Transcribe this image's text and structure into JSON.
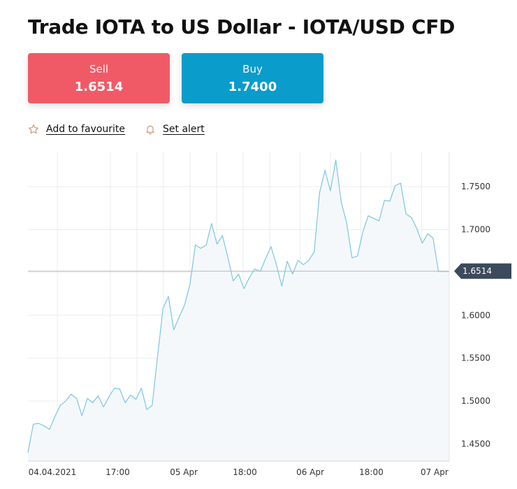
{
  "page": {
    "title": "Trade IOTA to US Dollar - IOTA/USD CFD"
  },
  "prices": {
    "sell_label": "Sell",
    "sell_value": "1.6514",
    "buy_label": "Buy",
    "buy_value": "1.7400",
    "sell_color": "#f05a66",
    "buy_color": "#0a9cca"
  },
  "actions": {
    "favourite_label": "Add to favourite",
    "favourite_icon": "star-icon",
    "alert_label": "Set alert",
    "alert_icon": "bell-icon",
    "icon_color": "#c98a6a"
  },
  "chart_data": {
    "type": "area",
    "series": [
      {
        "values": [
          1.44,
          1.473,
          1.474,
          1.471,
          1.467,
          1.482,
          1.495,
          1.5,
          1.508,
          1.503,
          1.483,
          1.503,
          1.498,
          1.506,
          1.493,
          1.505,
          1.515,
          1.514,
          1.498,
          1.507,
          1.502,
          1.515,
          1.49,
          1.495,
          1.552,
          1.608,
          1.622,
          1.583,
          1.598,
          1.612,
          1.636,
          1.682,
          1.678,
          1.682,
          1.707,
          1.683,
          1.693,
          1.668,
          1.64,
          1.648,
          1.631,
          1.644,
          1.654,
          1.651,
          1.666,
          1.68,
          1.659,
          1.634,
          1.663,
          1.648,
          1.664,
          1.659,
          1.664,
          1.674,
          1.743,
          1.769,
          1.745,
          1.781,
          1.732,
          1.708,
          1.667,
          1.669,
          1.697,
          1.716,
          1.713,
          1.71,
          1.734,
          1.733,
          1.751,
          1.754,
          1.718,
          1.714,
          1.701,
          1.684,
          1.695,
          1.69,
          1.651,
          1.651,
          1.651
        ]
      }
    ],
    "x_ticks": [
      "04.04.2021",
      "17:00",
      "05 Apr",
      "18:00",
      "06 Apr",
      "18:00",
      "07 Apr"
    ],
    "y_ticks": [
      "1.4500",
      "1.5000",
      "1.5500",
      "1.6000",
      "1.6500",
      "1.7000",
      "1.7500"
    ],
    "y_tick_values": [
      1.45,
      1.5,
      1.55,
      1.6,
      1.65,
      1.7,
      1.75
    ],
    "ylim": [
      1.43,
      1.79
    ],
    "current_price": 1.6514,
    "current_price_label": "1.6514",
    "line_color": "#7cc6e4",
    "fill_color": "#f4f8fb",
    "grid": true,
    "title": "",
    "xlabel": "",
    "ylabel": ""
  }
}
